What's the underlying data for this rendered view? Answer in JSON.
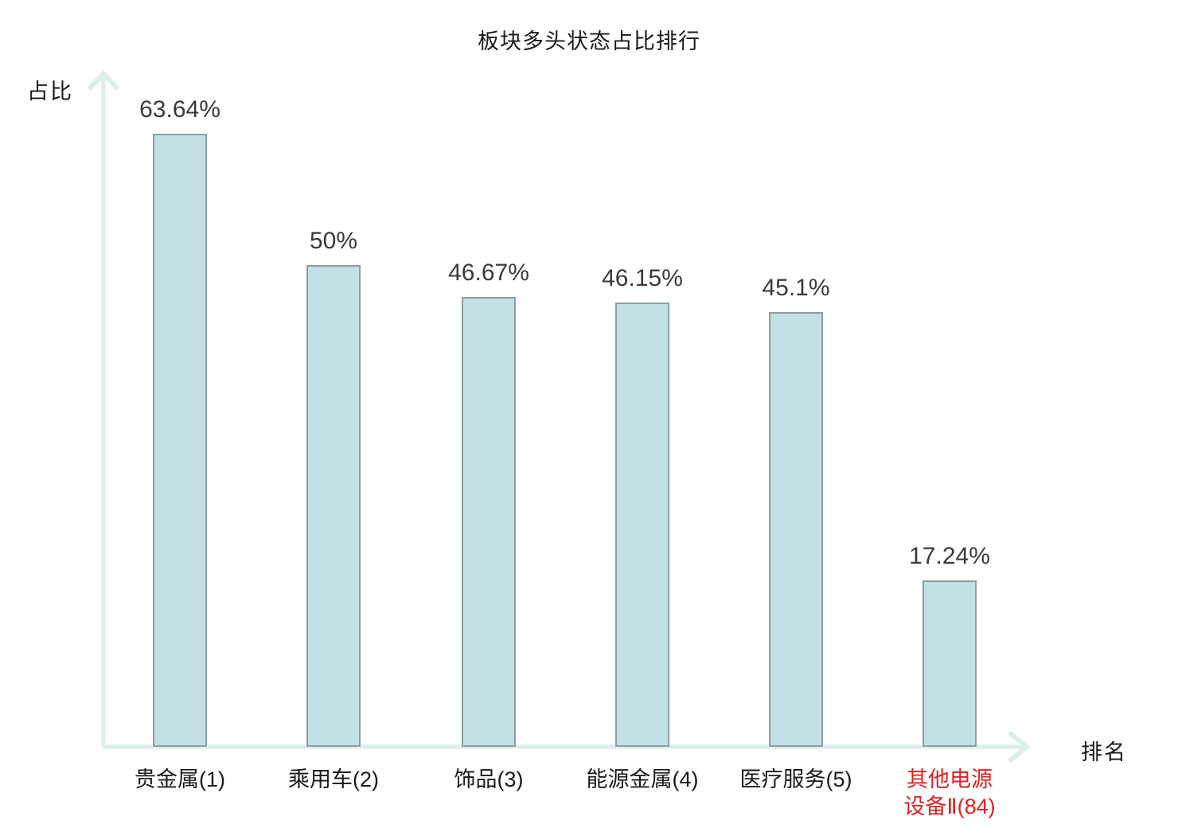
{
  "chart_data": {
    "type": "bar",
    "title": "板块多头状态占比排行",
    "xlabel": "排名",
    "ylabel": "占比",
    "categories": [
      "贵金属(1)",
      "乘用车(2)",
      "饰品(3)",
      "能源金属(4)",
      "医疗服务(5)",
      "其他电源设备Ⅱ(84)"
    ],
    "category_display": [
      [
        "贵金属(1)"
      ],
      [
        "乘用车(2)"
      ],
      [
        "饰品(3)"
      ],
      [
        "能源金属(4)"
      ],
      [
        "医疗服务(5)"
      ],
      [
        "其他电源",
        "设备Ⅱ(84)"
      ]
    ],
    "values": [
      63.64,
      50,
      46.67,
      46.15,
      45.1,
      17.24
    ],
    "value_labels": [
      "63.64%",
      "50%",
      "46.67%",
      "46.15%",
      "45.1%",
      "17.24%"
    ],
    "highlight_index": 5,
    "ylim": [
      0,
      70
    ],
    "grid": false,
    "legend": false,
    "colors": {
      "bar_fill": "#c3e0e4",
      "bar_border": "#8d9fa3",
      "axis": "#dbeeea",
      "value_text": "#3a3a3a",
      "category_text": "#1a1a1a",
      "highlight_text": "#e02121"
    }
  }
}
